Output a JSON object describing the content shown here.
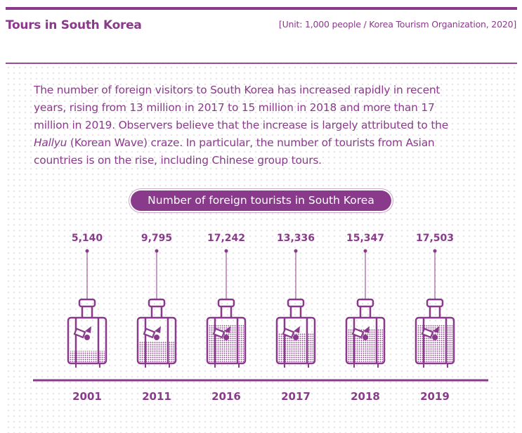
{
  "header": {
    "title": "Tours in South Korea",
    "unit_source": "[Unit: 1,000 people / Korea Tourism Organization, 2020]"
  },
  "paragraph": {
    "before_italic": "The number of foreign visitors to South Korea has increased rapidly in recent years, rising from 13 million in 2017 to 15 million in 2018 and more than 17 million in 2019. Observers believe that the increase is largely attributed to the ",
    "italic": "Hallyu",
    "after_italic": " (Korean Wave) craze. In particular, the number of tourists from Asian countries is on the rise, including Chinese group tours."
  },
  "colors": {
    "accent": "#8a3a8a"
  },
  "chart_data": {
    "type": "bar",
    "title": "Number of foreign tourists in South Korea",
    "categories": [
      "2001",
      "2011",
      "2016",
      "2017",
      "2018",
      "2019"
    ],
    "values": [
      5140,
      9795,
      17242,
      13336,
      15347,
      17503
    ],
    "data_labels": [
      "5,140",
      "9,795",
      "17,242",
      "13,336",
      "15,347",
      "17,503"
    ],
    "ylim": [
      0,
      20000
    ],
    "mark": "suitcase-icon fill level",
    "grid": false
  }
}
